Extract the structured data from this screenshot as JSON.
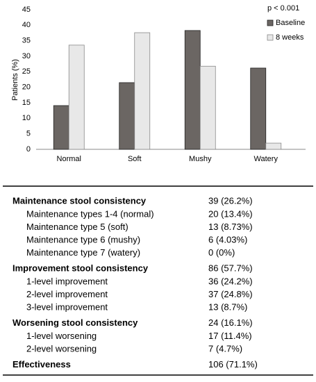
{
  "chart_data": {
    "type": "bar",
    "ylabel": "Patients (%)",
    "annotation": "p < 0.001",
    "categories": [
      "Normal",
      "Soft",
      "Mushy",
      "Watery"
    ],
    "series": [
      {
        "name": "Baseline",
        "color": "#6b6663",
        "values": [
          14.1,
          21.5,
          38.3,
          26.2
        ]
      },
      {
        "name": "8 weeks",
        "color": "#e8e8e8",
        "values": [
          33.6,
          37.6,
          26.8,
          2.0
        ]
      }
    ],
    "ylim": [
      0,
      45
    ],
    "yticks": [
      0,
      5,
      10,
      15,
      20,
      25,
      30,
      35,
      40,
      45
    ],
    "legend": "upper right"
  },
  "table": {
    "groups": [
      {
        "label": "Maintenance stool consistency",
        "value": "39 (26.2%)",
        "items": [
          [
            "Maintenance types 1-4 (normal)",
            "20 (13.4%)"
          ],
          [
            "Maintenance type 5 (soft)",
            "13 (8.73%)"
          ],
          [
            "Maintenance type 6 (mushy)",
            "6 (4.03%)"
          ],
          [
            "Maintenance type 7 (watery)",
            "0 (0%)"
          ]
        ]
      },
      {
        "label": "Improvement stool consistency",
        "value": "86 (57.7%)",
        "items": [
          [
            "1-level improvement",
            "36 (24.2%)"
          ],
          [
            "2-level improvement",
            "37 (24.8%)"
          ],
          [
            "3-level improvement",
            "13 (8.7%)"
          ]
        ]
      },
      {
        "label": "Worsening stool consistency",
        "value": "24 (16.1%)",
        "items": [
          [
            "1-level worsening",
            "17 (11.4%)"
          ],
          [
            "2-level worsening",
            "7 (4.7%)"
          ]
        ]
      },
      {
        "label": "Effectiveness",
        "value": "106 (71.1%)",
        "items": []
      }
    ]
  }
}
